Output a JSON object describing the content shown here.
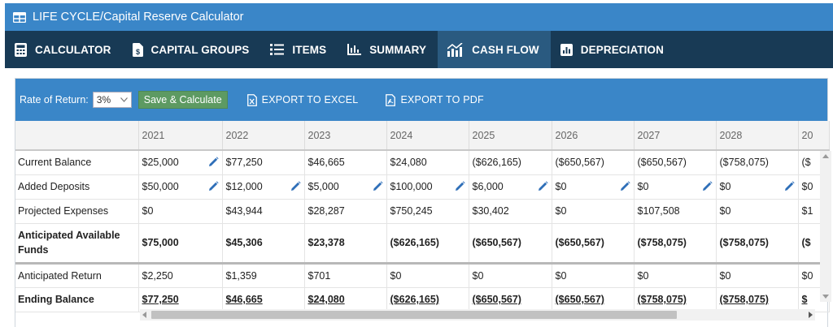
{
  "app": {
    "title": "LIFE CYCLE/Capital Reserve Calculator"
  },
  "nav": {
    "tabs": [
      {
        "label": "CALCULATOR"
      },
      {
        "label": "CAPITAL GROUPS"
      },
      {
        "label": "ITEMS"
      },
      {
        "label": "SUMMARY"
      },
      {
        "label": "CASH FLOW",
        "active": true
      },
      {
        "label": "DEPRECIATION"
      }
    ]
  },
  "toolbar": {
    "rate_label": "Rate of Return:",
    "rate_value": "3%",
    "save_label": "Save & Calculate",
    "export_excel": "EXPORT TO EXCEL",
    "export_pdf": "EXPORT TO PDF"
  },
  "table": {
    "years": [
      "2021",
      "2022",
      "2023",
      "2024",
      "2025",
      "2026",
      "2027",
      "2028",
      "20"
    ],
    "rows": [
      {
        "label": "Current Balance",
        "values": [
          "$25,000",
          "$77,250",
          "$46,665",
          "$24,080",
          "($626,165)",
          "($650,567)",
          "($650,567)",
          "($758,075)",
          "($"
        ]
      },
      {
        "label": "Added Deposits",
        "values": [
          "$50,000",
          "$12,000",
          "$5,000",
          "$100,000",
          "$6,000",
          "$0",
          "$0",
          "$0",
          "$0"
        ]
      },
      {
        "label": "Projected Expenses",
        "values": [
          "$0",
          "$43,944",
          "$28,287",
          "$750,245",
          "$30,402",
          "$0",
          "$107,508",
          "$0",
          "$1"
        ]
      },
      {
        "label": "Anticipated Available Funds",
        "values": [
          "$75,000",
          "$45,306",
          "$23,378",
          "($626,165)",
          "($650,567)",
          "($650,567)",
          "($758,075)",
          "($758,075)",
          "($"
        ]
      },
      {
        "label": "Anticipated Return",
        "values": [
          "$2,250",
          "$1,359",
          "$701",
          "$0",
          "$0",
          "$0",
          "$0",
          "$0",
          "$0"
        ]
      },
      {
        "label": "Ending Balance",
        "values": [
          "$77,250",
          "$46,665",
          "$24,080",
          "($626,165)",
          "($650,567)",
          "($650,567)",
          "($758,075)",
          "($758,075)",
          "$"
        ]
      }
    ]
  },
  "colors": {
    "title_bar": "#3a86c8",
    "nav_bar": "#183a55",
    "active_tab": "#2a5a80",
    "save_button": "#5d9a62",
    "pencil": "#2f6fb8"
  }
}
